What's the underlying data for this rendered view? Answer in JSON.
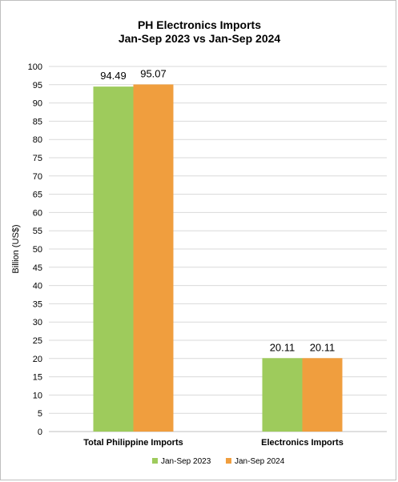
{
  "chart_data": {
    "type": "bar",
    "title_line1": "PH Electronics Imports",
    "title_line2": "Jan-Sep 2023 vs Jan-Sep 2024",
    "xlabel": "",
    "ylabel": "Billion (US$)",
    "ylim": [
      0,
      100
    ],
    "ytick_step": 5,
    "grid": true,
    "legend_position": "bottom",
    "categories": [
      "Total Philippine Imports",
      "Electronics Imports"
    ],
    "series": [
      {
        "name": "Jan-Sep 2023",
        "color": "#9ECB5C",
        "values": [
          94.49,
          20.11
        ]
      },
      {
        "name": "Jan-Sep 2024",
        "color": "#F09E3E",
        "values": [
          95.07,
          20.11
        ]
      }
    ]
  }
}
